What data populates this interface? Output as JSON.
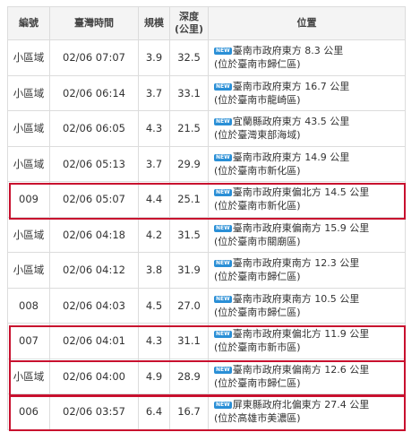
{
  "headers": {
    "id": "編號",
    "time": "臺灣時間",
    "mag": "規模",
    "depth_line1": "深度",
    "depth_line2": "(公里)",
    "loc": "位置"
  },
  "badge": "NEW",
  "rows": [
    {
      "id": "小區域",
      "time": "02/06 07:07",
      "mag": "3.9",
      "depth": "32.5",
      "loc1": "臺南市政府東方 8.3 公里",
      "loc2": "(位於臺南市歸仁區)"
    },
    {
      "id": "小區域",
      "time": "02/06 06:14",
      "mag": "3.7",
      "depth": "33.1",
      "loc1": "臺南市政府東方 16.7 公里",
      "loc2": "(位於臺南市龍崎區)"
    },
    {
      "id": "小區域",
      "time": "02/06 06:05",
      "mag": "4.3",
      "depth": "21.5",
      "loc1": "宜蘭縣政府東方 43.5 公里",
      "loc2": "(位於臺灣東部海域)"
    },
    {
      "id": "小區域",
      "time": "02/06 05:13",
      "mag": "3.7",
      "depth": "29.9",
      "loc1": "臺南市政府東方 14.9 公里",
      "loc2": "(位於臺南市新化區)"
    },
    {
      "id": "009",
      "time": "02/06 05:07",
      "mag": "4.4",
      "depth": "25.1",
      "loc1": "臺南市政府東偏北方 14.5 公里",
      "loc2": "(位於臺南市新化區)"
    },
    {
      "id": "小區域",
      "time": "02/06 04:18",
      "mag": "4.2",
      "depth": "31.5",
      "loc1": "臺南市政府東偏南方 15.9 公里",
      "loc2": "(位於臺南市關廟區)"
    },
    {
      "id": "小區域",
      "time": "02/06 04:12",
      "mag": "3.8",
      "depth": "31.9",
      "loc1": "臺南市政府東南方 12.3 公里",
      "loc2": "(位於臺南市歸仁區)"
    },
    {
      "id": "008",
      "time": "02/06 04:03",
      "mag": "4.5",
      "depth": "27.0",
      "loc1": "臺南市政府東南方 10.5 公里",
      "loc2": "(位於臺南市歸仁區)"
    },
    {
      "id": "007",
      "time": "02/06 04:01",
      "mag": "4.3",
      "depth": "31.1",
      "loc1": "臺南市政府東偏北方 11.9 公里",
      "loc2": "(位於臺南市新市區)"
    },
    {
      "id": "小區域",
      "time": "02/06 04:00",
      "mag": "4.9",
      "depth": "28.9",
      "loc1": "臺南市政府東偏南方 12.6 公里",
      "loc2": "(位於臺南市歸仁區)"
    },
    {
      "id": "006",
      "time": "02/06 03:57",
      "mag": "6.4",
      "depth": "16.7",
      "loc1": "屏東縣政府北偏東方 27.4 公里",
      "loc2": "(位於高雄市美濃區)"
    }
  ],
  "highlight_color": "#c8102e"
}
